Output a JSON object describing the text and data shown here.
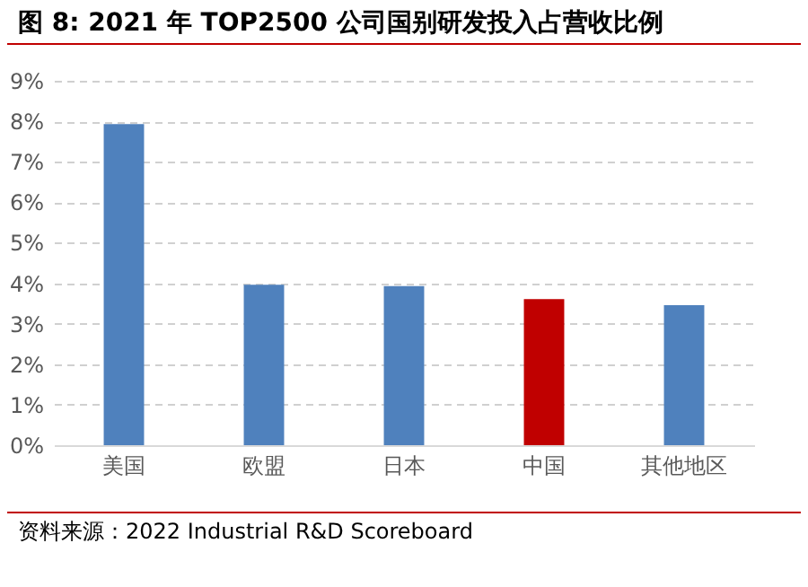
{
  "chart_data": {
    "type": "bar",
    "title": "图 8:  2021 年 TOP2500 公司国别研发投入占营收比例",
    "categories": [
      "美国",
      "欧盟",
      "日本",
      "中国",
      "其他地区"
    ],
    "values": [
      7.93,
      3.96,
      3.93,
      3.61,
      3.46
    ],
    "colors": [
      "#4f81bd",
      "#4f81bd",
      "#4f81bd",
      "#c00000",
      "#4f81bd"
    ],
    "ylim": [
      0,
      9
    ],
    "yticks": [
      {
        "value": 0,
        "label": "0%"
      },
      {
        "value": 1,
        "label": "1%"
      },
      {
        "value": 2,
        "label": "2%"
      },
      {
        "value": 3,
        "label": "3%"
      },
      {
        "value": 4,
        "label": "4%"
      },
      {
        "value": 5,
        "label": "5%"
      },
      {
        "value": 6,
        "label": "6%"
      },
      {
        "value": 7,
        "label": "7%"
      },
      {
        "value": 8,
        "label": "8%"
      },
      {
        "value": 9,
        "label": "9%"
      }
    ],
    "grid": "y",
    "annotations": [
      "资料来源：2022 Industrial R&D Scoreboard"
    ]
  }
}
